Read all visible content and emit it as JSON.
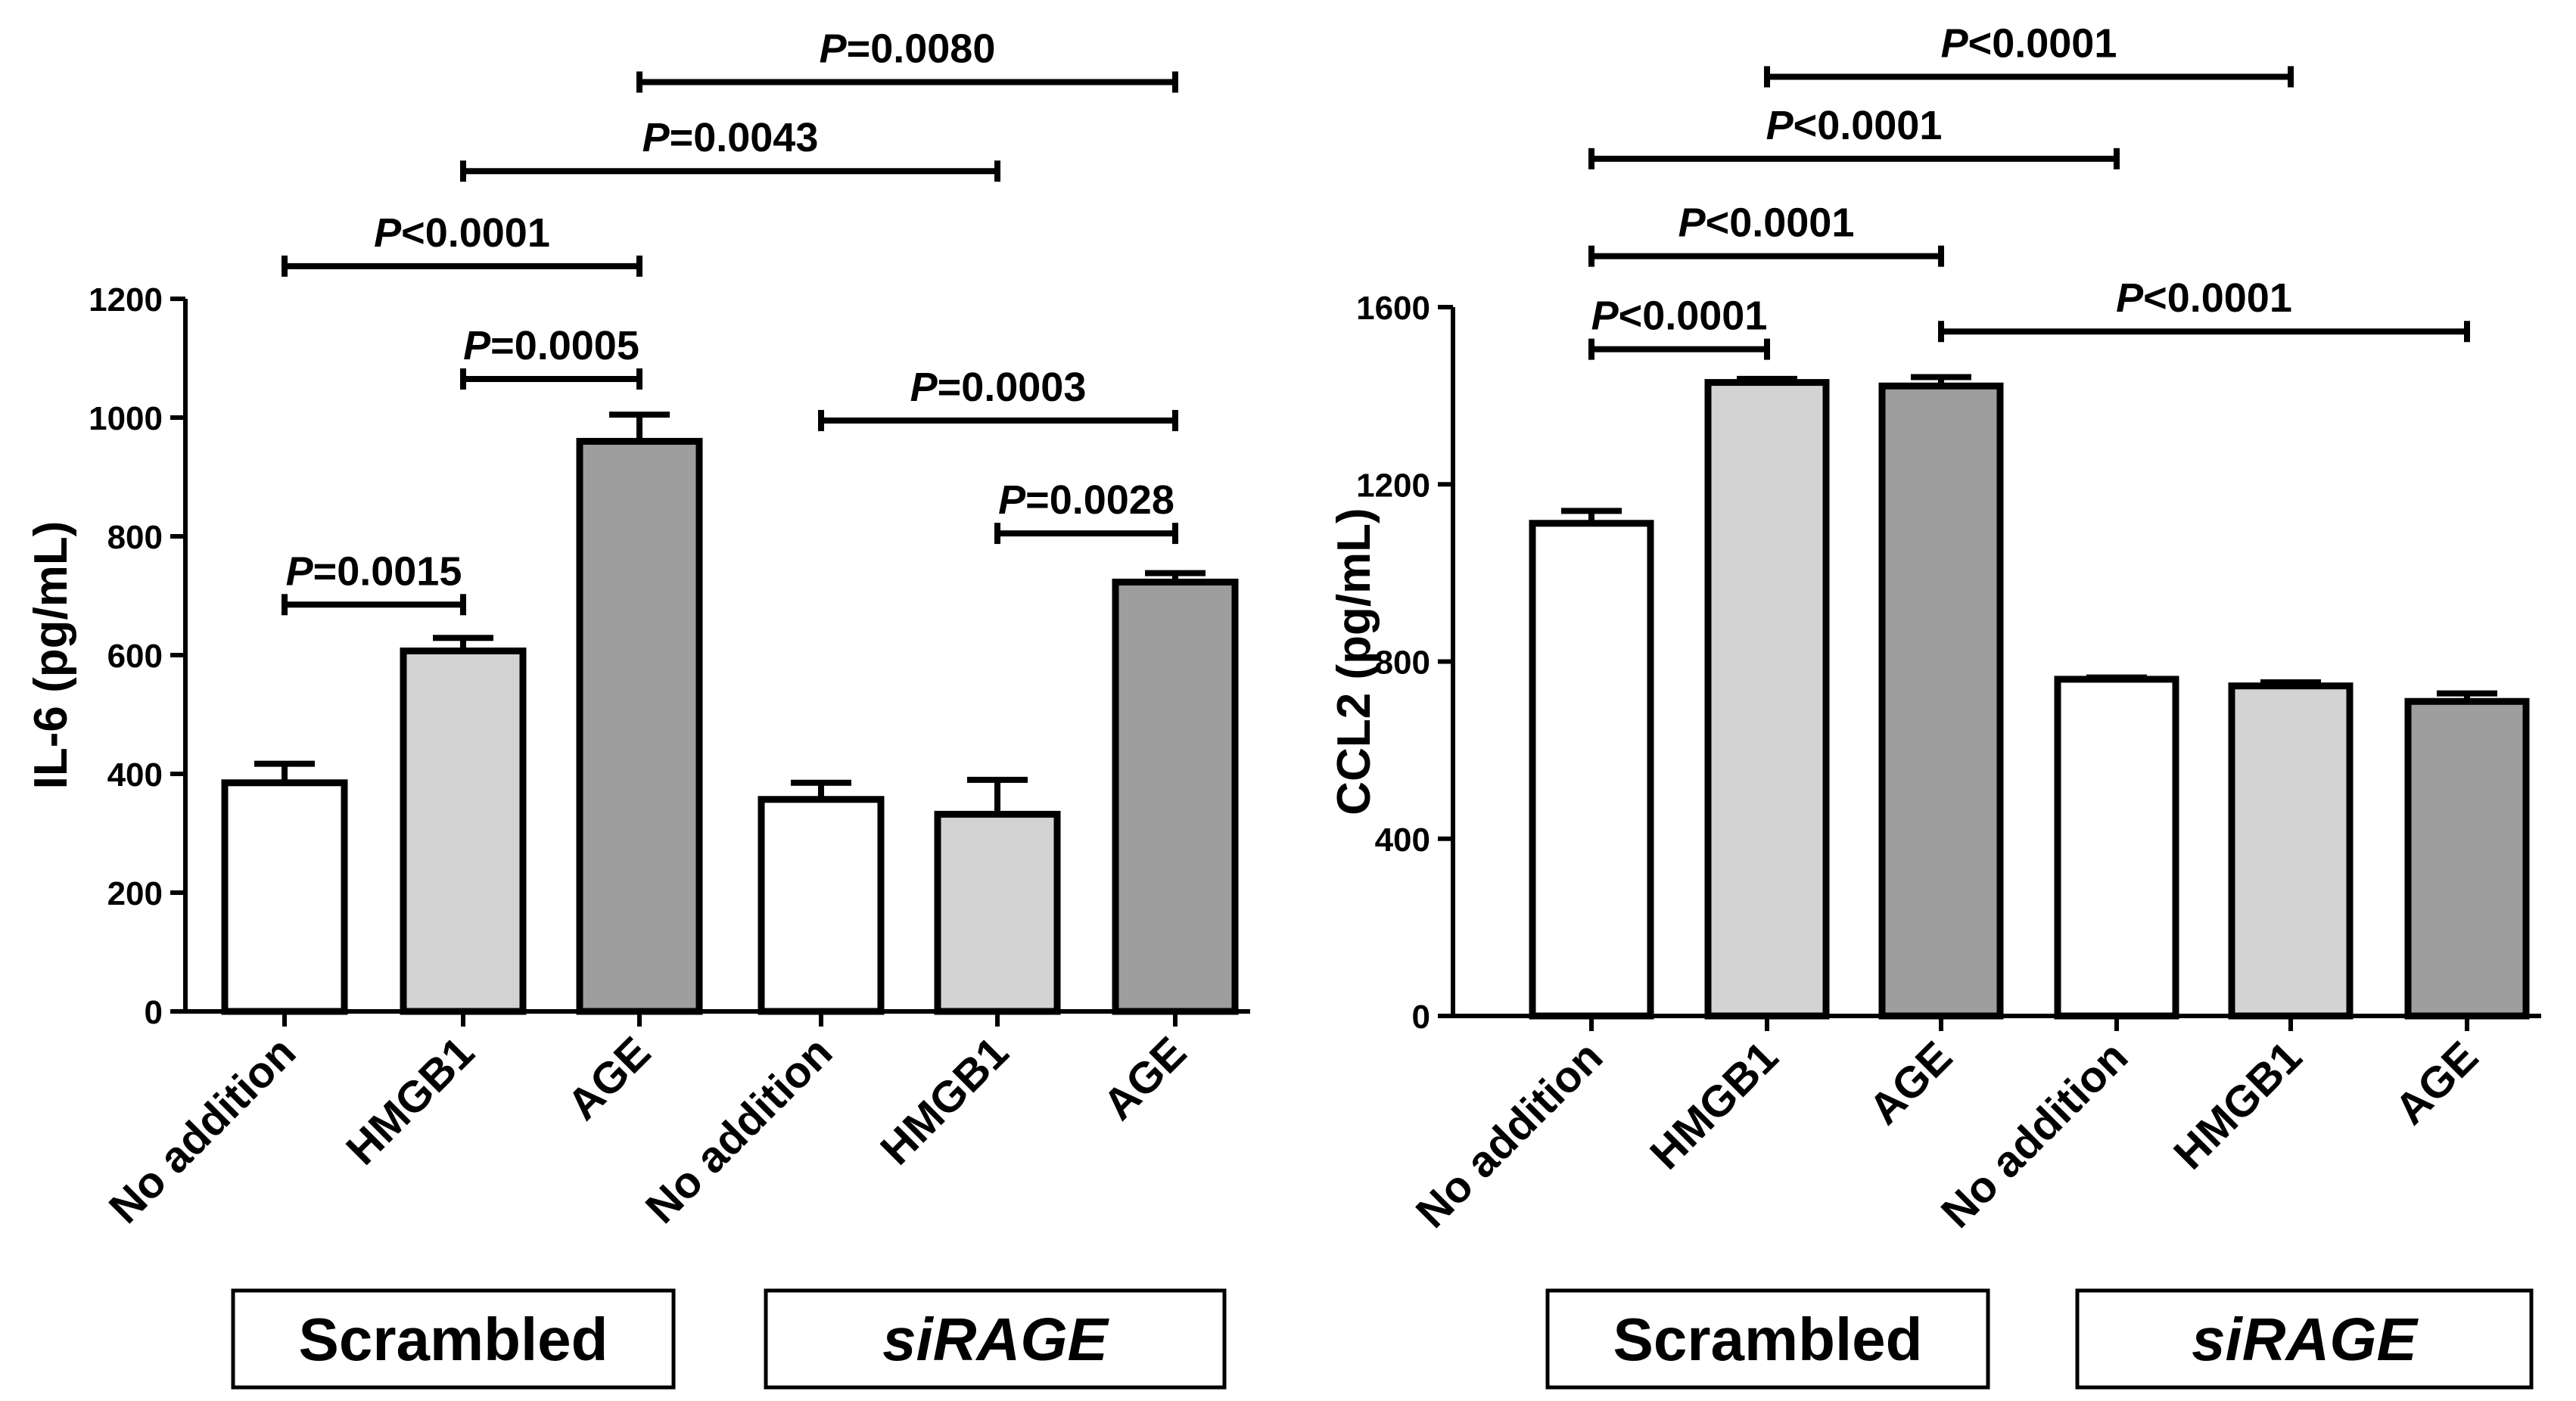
{
  "chart_data": [
    {
      "type": "bar",
      "ylabel": "IL-6 (pg/mL)",
      "ylim": [
        0,
        1200
      ],
      "yticks": [
        0,
        200,
        400,
        600,
        800,
        1000,
        1200
      ],
      "yticks_text": [
        "0",
        "200",
        "400",
        "600",
        "800",
        "1000",
        "1200"
      ],
      "categories": [
        "No addition",
        "HMGB1",
        "AGE",
        "No addition",
        "HMGB1",
        "AGE"
      ],
      "values": [
        385,
        607,
        960,
        357,
        332,
        723
      ],
      "errors": [
        32,
        22,
        45,
        28,
        58,
        15
      ],
      "colors": [
        "#ffffff",
        "#d3d3d3",
        "#9e9e9e",
        "#ffffff",
        "#d3d3d3",
        "#9e9e9e"
      ],
      "groups": [
        {
          "label": "Scrambled",
          "italic": false,
          "from": 0,
          "to": 2
        },
        {
          "label": "siRAGE",
          "italic": true,
          "from": 3,
          "to": 5
        }
      ],
      "comparisons": [
        {
          "from": 0,
          "to": 1,
          "y": 685,
          "p": "P",
          "rel": "=0.0015"
        },
        {
          "from": 1,
          "to": 2,
          "y": 1065,
          "p": "P",
          "rel": "=0.0005"
        },
        {
          "from": 0,
          "to": 2,
          "y": 1255,
          "p": "P",
          "rel": "<0.0001"
        },
        {
          "from": 1,
          "to": 4,
          "y": 1415,
          "p": "P",
          "rel": "=0.0043"
        },
        {
          "from": 2,
          "to": 5,
          "y": 1565,
          "p": "P",
          "rel": "=0.0080"
        },
        {
          "from": 3,
          "to": 5,
          "y": 995,
          "p": "P",
          "rel": "=0.0003"
        },
        {
          "from": 4,
          "to": 5,
          "y": 805,
          "p": "P",
          "rel": "=0.0028"
        }
      ]
    },
    {
      "type": "bar",
      "ylabel": "CCL2 (pg/mL)",
      "ylim": [
        0,
        1600
      ],
      "yticks": [
        0,
        400,
        800,
        1200,
        1600
      ],
      "yticks_text": [
        "0",
        "400",
        "800",
        "1200",
        "1600"
      ],
      "categories": [
        "No addition",
        "HMGB1",
        "AGE",
        "No addition",
        "HMGB1",
        "AGE"
      ],
      "values": [
        1112,
        1430,
        1422,
        760,
        745,
        710
      ],
      "errors": [
        28,
        8,
        20,
        4,
        8,
        18
      ],
      "colors": [
        "#ffffff",
        "#d3d3d3",
        "#9e9e9e",
        "#ffffff",
        "#d3d3d3",
        "#9e9e9e"
      ],
      "groups": [
        {
          "label": "Scrambled",
          "italic": false,
          "from": 0,
          "to": 2
        },
        {
          "label": "siRAGE",
          "italic": true,
          "from": 3,
          "to": 5
        }
      ],
      "comparisons": [
        {
          "from": 0,
          "to": 1,
          "y": 1505,
          "p": "P",
          "rel": "<0.0001"
        },
        {
          "from": 0,
          "to": 2,
          "y": 1715,
          "p": "P",
          "rel": "<0.0001"
        },
        {
          "from": 0,
          "to": 3,
          "y": 1935,
          "p": "P",
          "rel": "<0.0001"
        },
        {
          "from": 1,
          "to": 4,
          "y": 2120,
          "p": "P",
          "rel": "<0.0001"
        },
        {
          "from": 2,
          "to": 5,
          "y": 1545,
          "p": "P",
          "rel": "<0.0001"
        }
      ]
    }
  ]
}
